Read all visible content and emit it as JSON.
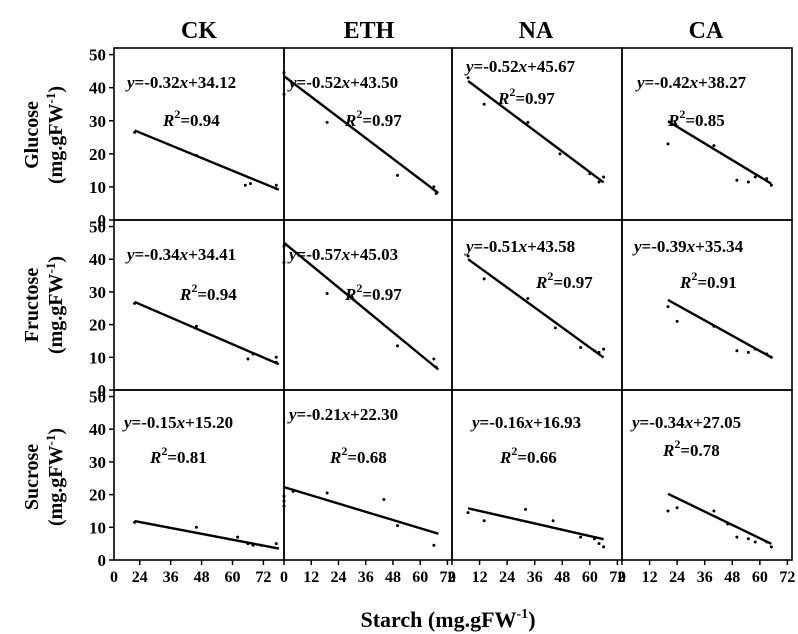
{
  "x_axis_title": "Starch (mg.gFW",
  "x_axis_title_sup": "-1",
  "x_axis_title_end": ")",
  "column_titles": [
    "CK",
    "ETH",
    "NA",
    "CA"
  ],
  "row_titles": [
    {
      "name": "Glucose",
      "unit": "(mg.gFW",
      "sup": "-1",
      "end": ")"
    },
    {
      "name": "Fructose",
      "unit": "(mg.gFW",
      "sup": "-1",
      "end": ")"
    },
    {
      "name": "Sucrose",
      "unit": "(mg.gFW",
      "sup": "-1",
      "end": ")"
    }
  ],
  "y_ticks": [
    0,
    10,
    20,
    30,
    40,
    50
  ],
  "x_ticks": [
    0,
    12,
    24,
    36,
    48,
    60,
    72
  ],
  "x_tick_labels": [
    "0",
    "12",
    "24",
    "36",
    "48",
    "60",
    "72"
  ],
  "first_col_x_ticks": [
    24,
    36,
    48,
    60,
    72
  ],
  "first_col_x_tick_labels": [
    "24",
    "36",
    "48",
    "60",
    "72"
  ],
  "chart_data": [
    {
      "type": "scatter",
      "row": "Glucose",
      "column": "CK",
      "equation": "y=-0.32x+34.12",
      "slope": -0.32,
      "intercept": 34.12,
      "r2_label": "R",
      "r2_value": "=0.94",
      "fit_x": [
        22,
        78
      ],
      "ylim": [
        0,
        50
      ],
      "points": [
        [
          22,
          26.5
        ],
        [
          46,
          19.5
        ],
        [
          65,
          10.5
        ],
        [
          67,
          11
        ],
        [
          77,
          10.5
        ],
        [
          77,
          9.5
        ]
      ]
    },
    {
      "type": "scatter",
      "row": "Glucose",
      "column": "ETH",
      "equation": "y=-0.52x+43.50",
      "slope": -0.52,
      "intercept": 43.5,
      "r2_label": "R",
      "r2_value": "=0.97",
      "fit_x": [
        0,
        68
      ],
      "ylim": [
        0,
        50
      ],
      "points": [
        [
          0,
          44.5
        ],
        [
          0,
          38
        ],
        [
          19,
          29.5
        ],
        [
          50,
          13.5
        ],
        [
          66,
          10
        ],
        [
          67,
          8
        ]
      ]
    },
    {
      "type": "scatter",
      "row": "Glucose",
      "column": "NA",
      "equation": "y=-0.52x+45.67",
      "slope": -0.52,
      "intercept": 45.67,
      "r2_label": "R",
      "r2_value": "=0.97",
      "fit_x": [
        7,
        66
      ],
      "ylim": [
        0,
        50
      ],
      "points": [
        [
          7,
          43
        ],
        [
          14,
          35
        ],
        [
          33,
          29.5
        ],
        [
          47,
          20
        ],
        [
          60,
          14
        ],
        [
          64,
          11.5
        ],
        [
          66,
          13
        ]
      ]
    },
    {
      "type": "scatter",
      "row": "Glucose",
      "column": "CA",
      "equation": "y=-0.42x+38.27",
      "slope": -0.42,
      "intercept": 38.27,
      "r2_label": "R",
      "r2_value": "=0.85",
      "fit_x": [
        20,
        65
      ],
      "ylim": [
        0,
        50
      ],
      "points": [
        [
          20,
          23
        ],
        [
          40,
          22.5
        ],
        [
          50,
          12
        ],
        [
          55,
          11.5
        ],
        [
          58,
          13
        ],
        [
          63,
          12.5
        ],
        [
          65,
          10.5
        ]
      ]
    },
    {
      "type": "scatter",
      "row": "Fructose",
      "column": "CK",
      "equation": "y=-0.34x+34.41",
      "slope": -0.34,
      "intercept": 34.41,
      "r2_label": "R",
      "r2_value": "=0.94",
      "fit_x": [
        22,
        78
      ],
      "ylim": [
        0,
        50
      ],
      "points": [
        [
          22,
          26.5
        ],
        [
          46,
          19.5
        ],
        [
          66,
          9.5
        ],
        [
          68,
          11
        ],
        [
          77,
          10
        ],
        [
          77,
          8.5
        ]
      ]
    },
    {
      "type": "scatter",
      "row": "Fructose",
      "column": "ETH",
      "equation": "y=-0.57x+45.03",
      "slope": -0.57,
      "intercept": 45.03,
      "r2_label": "R",
      "r2_value": "=0.97",
      "fit_x": [
        0,
        68
      ],
      "ylim": [
        0,
        50
      ],
      "points": [
        [
          0,
          44
        ],
        [
          0,
          39
        ],
        [
          19,
          29.5
        ],
        [
          50,
          13.5
        ],
        [
          66,
          9.5
        ],
        [
          67,
          7
        ]
      ]
    },
    {
      "type": "scatter",
      "row": "Fructose",
      "column": "NA",
      "equation": "y=-0.51x+43.58",
      "slope": -0.51,
      "intercept": 43.58,
      "r2_label": "R",
      "r2_value": "=0.97",
      "fit_x": [
        7,
        66
      ],
      "ylim": [
        0,
        50
      ],
      "points": [
        [
          7,
          41
        ],
        [
          14,
          34
        ],
        [
          33,
          28
        ],
        [
          45,
          19
        ],
        [
          56,
          13
        ],
        [
          62,
          12
        ],
        [
          64,
          11.5
        ],
        [
          66,
          12.5
        ]
      ]
    },
    {
      "type": "scatter",
      "row": "Fructose",
      "column": "CA",
      "equation": "y=-0.39x+35.34",
      "slope": -0.39,
      "intercept": 35.34,
      "r2_label": "R",
      "r2_value": "=0.91",
      "fit_x": [
        20,
        65
      ],
      "ylim": [
        0,
        50
      ],
      "points": [
        [
          20,
          25.5
        ],
        [
          24,
          21
        ],
        [
          40,
          19.5
        ],
        [
          50,
          12
        ],
        [
          55,
          11.5
        ],
        [
          58,
          12.5
        ],
        [
          63,
          11
        ],
        [
          65,
          10
        ]
      ]
    },
    {
      "type": "scatter",
      "row": "Sucrose",
      "column": "CK",
      "equation": "y=-0.15x+15.20",
      "slope": -0.15,
      "intercept": 15.2,
      "r2_label": "R",
      "r2_value": "=0.81",
      "fit_x": [
        22,
        78
      ],
      "ylim": [
        0,
        50
      ],
      "points": [
        [
          22,
          11.5
        ],
        [
          46,
          10
        ],
        [
          62,
          7
        ],
        [
          66,
          5
        ],
        [
          68,
          4.5
        ],
        [
          71,
          4.5
        ],
        [
          77,
          5
        ]
      ]
    },
    {
      "type": "scatter",
      "row": "Sucrose",
      "column": "ETH",
      "equation": "y=-0.21x+22.30",
      "slope": -0.21,
      "intercept": 22.3,
      "r2_label": "R",
      "r2_value": "=0.68",
      "fit_x": [
        0,
        68
      ],
      "ylim": [
        0,
        50
      ],
      "points": [
        [
          0,
          19.5
        ],
        [
          0,
          18
        ],
        [
          0,
          16.5
        ],
        [
          4,
          21
        ],
        [
          19,
          20.5
        ],
        [
          44,
          18.5
        ],
        [
          50,
          10.5
        ],
        [
          66,
          4.5
        ]
      ]
    },
    {
      "type": "scatter",
      "row": "Sucrose",
      "column": "NA",
      "equation": "y=-0.16x+16.93",
      "slope": -0.16,
      "intercept": 16.93,
      "r2_label": "R",
      "r2_value": "=0.66",
      "fit_x": [
        7,
        66
      ],
      "ylim": [
        0,
        50
      ],
      "points": [
        [
          7,
          14.5
        ],
        [
          14,
          12
        ],
        [
          32,
          15.5
        ],
        [
          44,
          12
        ],
        [
          56,
          7
        ],
        [
          62,
          6.5
        ],
        [
          64,
          5
        ],
        [
          66,
          4
        ]
      ]
    },
    {
      "type": "scatter",
      "row": "Sucrose",
      "column": "CA",
      "equation": "y=-0.34x+27.05",
      "slope": -0.34,
      "intercept": 27.05,
      "r2_label": "R",
      "r2_value": "=0.78",
      "fit_x": [
        20,
        65
      ],
      "ylim": [
        0,
        50
      ],
      "points": [
        [
          20,
          15
        ],
        [
          24,
          16
        ],
        [
          40,
          15
        ],
        [
          46,
          11
        ],
        [
          50,
          7
        ],
        [
          55,
          6.5
        ],
        [
          58,
          5.5
        ],
        [
          63,
          5.5
        ],
        [
          65,
          4
        ]
      ]
    }
  ]
}
